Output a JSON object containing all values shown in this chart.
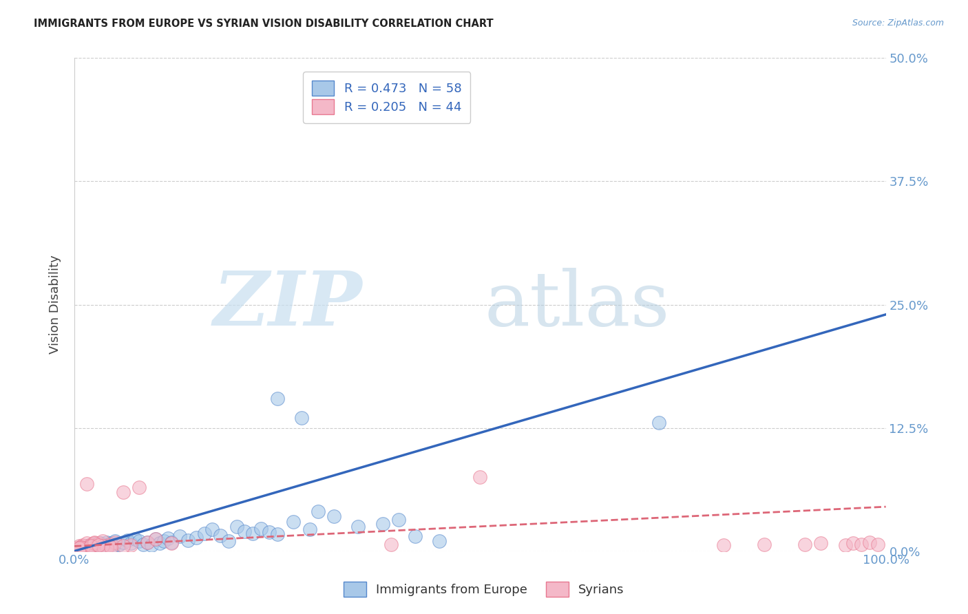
{
  "title": "IMMIGRANTS FROM EUROPE VS SYRIAN VISION DISABILITY CORRELATION CHART",
  "source": "Source: ZipAtlas.com",
  "ylabel": "Vision Disability",
  "xlim": [
    0,
    1.0
  ],
  "ylim": [
    0,
    0.5
  ],
  "yticks": [
    0.0,
    0.125,
    0.25,
    0.375,
    0.5
  ],
  "ytick_labels": [
    "0.0%",
    "12.5%",
    "25.0%",
    "37.5%",
    "50.0%"
  ],
  "xticks": [
    0.0,
    1.0
  ],
  "xtick_labels": [
    "0.0%",
    "100.0%"
  ],
  "legend1_label": "R = 0.473   N = 58",
  "legend2_label": "R = 0.205   N = 44",
  "legend_xlabel": "Immigrants from Europe",
  "legend_ylabel": "Syrians",
  "blue_color": "#a8c8e8",
  "pink_color": "#f4b8c8",
  "blue_edge_color": "#5588cc",
  "pink_edge_color": "#e87890",
  "blue_line_color": "#3366bb",
  "pink_line_color": "#dd6677",
  "title_color": "#222222",
  "axis_label_color": "#444444",
  "tick_color": "#6699cc",
  "grid_color": "#cccccc",
  "blue_scatter_x": [
    0.005,
    0.008,
    0.01,
    0.012,
    0.015,
    0.018,
    0.02,
    0.022,
    0.025,
    0.028,
    0.03,
    0.032,
    0.035,
    0.038,
    0.04,
    0.042,
    0.045,
    0.048,
    0.05,
    0.055,
    0.06,
    0.065,
    0.07,
    0.075,
    0.08,
    0.085,
    0.09,
    0.095,
    0.1,
    0.105,
    0.11,
    0.115,
    0.12,
    0.13,
    0.14,
    0.15,
    0.16,
    0.17,
    0.18,
    0.19,
    0.2,
    0.21,
    0.22,
    0.23,
    0.24,
    0.25,
    0.27,
    0.29,
    0.3,
    0.32,
    0.35,
    0.38,
    0.4,
    0.42,
    0.45,
    0.25,
    0.28,
    0.72
  ],
  "blue_scatter_y": [
    0.002,
    0.003,
    0.004,
    0.003,
    0.005,
    0.004,
    0.006,
    0.005,
    0.007,
    0.004,
    0.006,
    0.008,
    0.005,
    0.007,
    0.009,
    0.006,
    0.008,
    0.005,
    0.01,
    0.007,
    0.009,
    0.011,
    0.008,
    0.012,
    0.01,
    0.007,
    0.009,
    0.006,
    0.012,
    0.008,
    0.01,
    0.013,
    0.009,
    0.015,
    0.011,
    0.014,
    0.018,
    0.022,
    0.016,
    0.01,
    0.025,
    0.02,
    0.018,
    0.023,
    0.019,
    0.017,
    0.03,
    0.022,
    0.04,
    0.035,
    0.025,
    0.028,
    0.032,
    0.015,
    0.01,
    0.155,
    0.135,
    0.13
  ],
  "pink_scatter_x": [
    0.003,
    0.006,
    0.008,
    0.01,
    0.012,
    0.015,
    0.018,
    0.02,
    0.022,
    0.025,
    0.028,
    0.03,
    0.035,
    0.04,
    0.045,
    0.05,
    0.06,
    0.07,
    0.08,
    0.09,
    0.1,
    0.12,
    0.06,
    0.04,
    0.015,
    0.025,
    0.035,
    0.5,
    0.8,
    0.85,
    0.9,
    0.92,
    0.95,
    0.96,
    0.97,
    0.98,
    0.99,
    0.01,
    0.008,
    0.006,
    0.02,
    0.03,
    0.045,
    0.39
  ],
  "pink_scatter_y": [
    0.003,
    0.005,
    0.004,
    0.006,
    0.005,
    0.008,
    0.004,
    0.007,
    0.005,
    0.009,
    0.006,
    0.008,
    0.01,
    0.005,
    0.007,
    0.009,
    0.06,
    0.006,
    0.065,
    0.009,
    0.012,
    0.008,
    0.005,
    0.003,
    0.068,
    0.008,
    0.005,
    0.075,
    0.006,
    0.007,
    0.007,
    0.008,
    0.006,
    0.008,
    0.007,
    0.009,
    0.007,
    0.003,
    0.004,
    0.003,
    0.005,
    0.006,
    0.004,
    0.007
  ],
  "blue_trend_x": [
    0.0,
    1.0
  ],
  "blue_trend_y": [
    0.0,
    0.24
  ],
  "pink_trend_x": [
    0.0,
    1.0
  ],
  "pink_trend_y": [
    0.005,
    0.045
  ]
}
